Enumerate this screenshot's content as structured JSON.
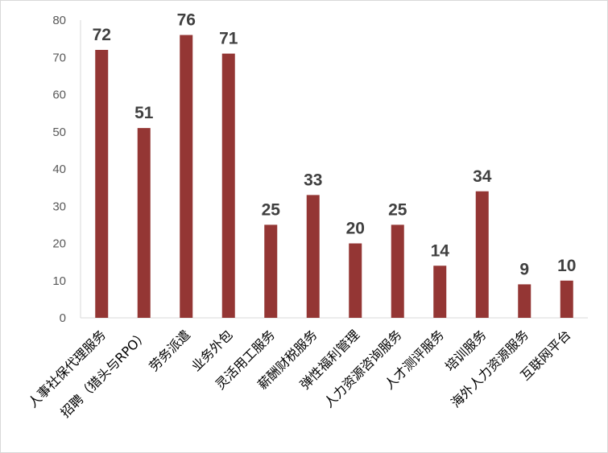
{
  "chart_data": {
    "type": "bar",
    "categories": [
      "人事社保代理服务",
      "招聘（猎头与RPO）",
      "劳务派遣",
      "业务外包",
      "灵活用工服务",
      "薪酬财税服务",
      "弹性福利管理",
      "人力资源咨询服务",
      "人才测评服务",
      "培训服务",
      "海外人力资源服务",
      "互联网平台"
    ],
    "values": [
      72,
      51,
      76,
      71,
      25,
      33,
      20,
      25,
      14,
      34,
      9,
      10
    ],
    "ylim": [
      0,
      80
    ],
    "yticks": [
      0,
      10,
      20,
      30,
      40,
      50,
      60,
      70,
      80
    ],
    "grid": false,
    "legend": "none",
    "bar_color": "#943634",
    "axis_color": "#d9d9d9"
  }
}
